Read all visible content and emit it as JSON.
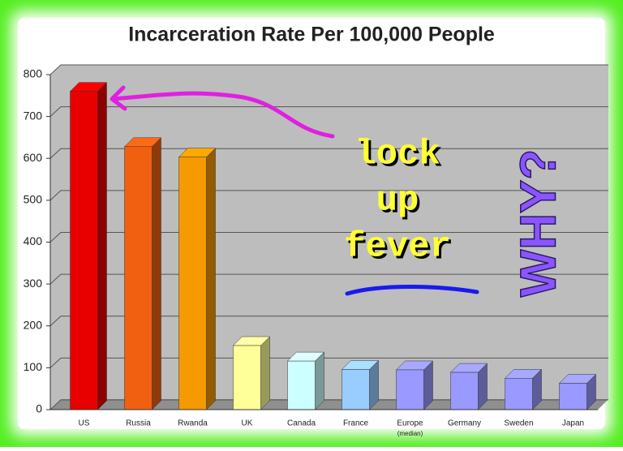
{
  "chart_data": {
    "type": "bar",
    "title": "Incarceration Rate Per 100,000 People",
    "categories": [
      "US",
      "Russia",
      "Rwanda",
      "UK",
      "Canada",
      "France",
      "Europe",
      "Germany",
      "Sweden",
      "Japan"
    ],
    "category_note": "(median)",
    "values": [
      760,
      628,
      603,
      153,
      116,
      96,
      95,
      89,
      75,
      63
    ],
    "colors": [
      "#e80000",
      "#f06010",
      "#f59a00",
      "#ffff99",
      "#ccffff",
      "#99ccff",
      "#9999ff",
      "#9999ff",
      "#9999ff",
      "#9999ff"
    ],
    "ylim": [
      0,
      800
    ],
    "yticks": [
      0,
      100,
      200,
      300,
      400,
      500,
      600,
      700,
      800
    ],
    "grid": true,
    "annotation_lines": [
      "lock",
      "up",
      "fever"
    ],
    "side_note": "WHY?"
  }
}
